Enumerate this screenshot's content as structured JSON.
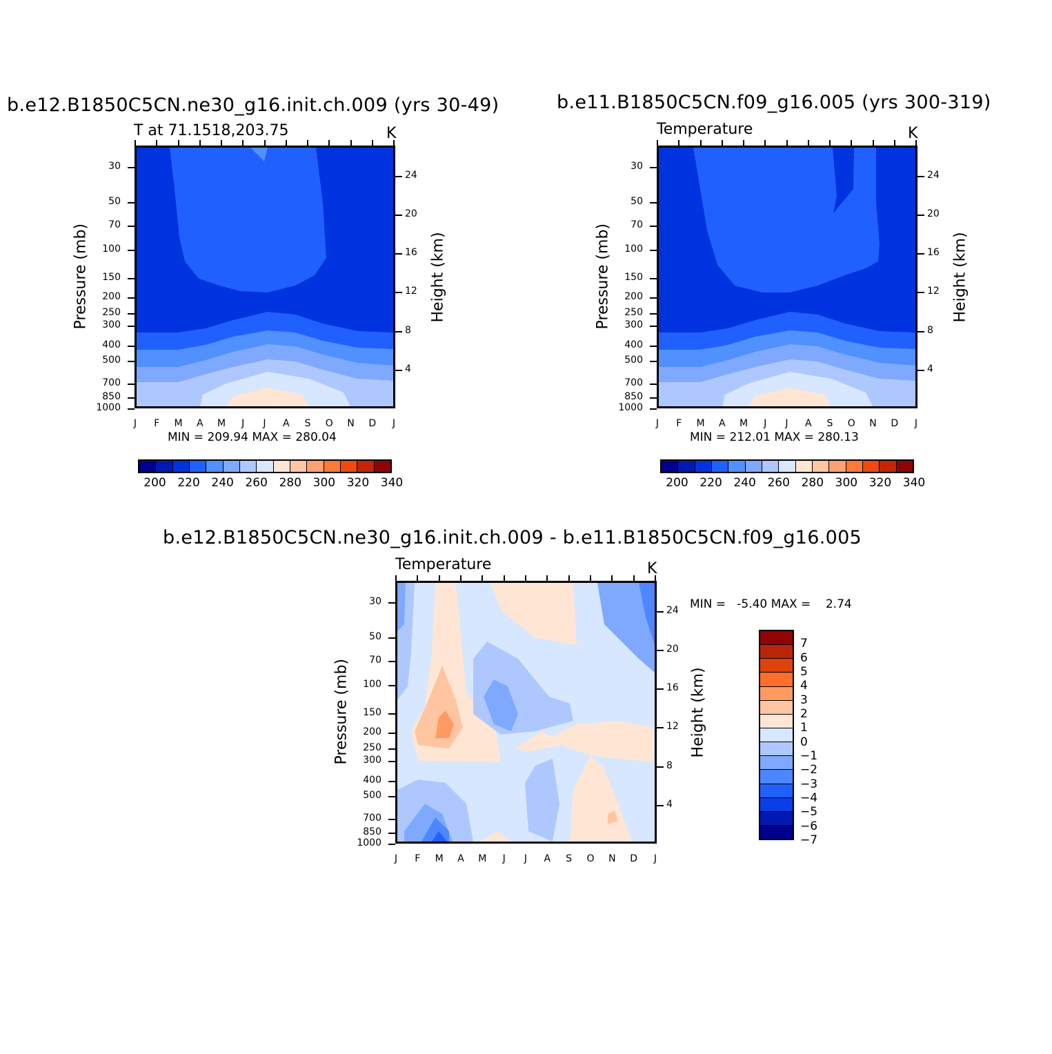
{
  "panels": [
    {
      "title": "b.e12.B1850C5CN.ne30_g16.init.ch.009 (yrs 30-49)",
      "left_string": "T at 71.1518,203.75",
      "right_string": "K",
      "y_label": "Pressure (mb)",
      "y2_label": "Height (km)",
      "minmax": "MIN = 209.94 MAX = 280.04"
    },
    {
      "title": "b.e11.B1850C5CN.f09_g16.005 (yrs 300-319)",
      "left_string": "Temperature",
      "right_string": "K",
      "y_label": "Pressure (mb)",
      "y2_label": "Height (km)",
      "minmax": "MIN = 212.01 MAX = 280.13"
    },
    {
      "title": "b.e12.B1850C5CN.ne30_g16.init.ch.009 - b.e11.B1850C5CN.f09_g16.005",
      "left_string": "Temperature",
      "right_string": "K",
      "y_label": "Pressure (mb)",
      "y2_label": "Height (km)",
      "minmax": "MIN =   -5.40 MAX =    2.74"
    }
  ],
  "chart_data": [
    {
      "type": "heatmap",
      "title": "b.e12.B1850C5CN.ne30_g16.init.ch.009 (yrs 30-49)",
      "variable": "T at 71.1518,203.75",
      "units": "K",
      "xlabel": "",
      "ylabel": "Pressure (mb)",
      "y2label": "Height (km)",
      "x_ticks": [
        "J",
        "F",
        "M",
        "A",
        "M",
        "J",
        "J",
        "A",
        "S",
        "O",
        "N",
        "D",
        "J"
      ],
      "y_ticks": [
        30,
        50,
        70,
        100,
        150,
        200,
        250,
        300,
        400,
        500,
        700,
        850,
        1000
      ],
      "y_scale": "log",
      "y_reversed": true,
      "y2_ticks": [
        24,
        20,
        16,
        12,
        8,
        4
      ],
      "min": 209.94,
      "max": 280.04,
      "colorbar_labels": [
        "200",
        "220",
        "240",
        "260",
        "280",
        "300",
        "320",
        "340"
      ],
      "colorbar_orientation": "horizontal"
    },
    {
      "type": "heatmap",
      "title": "b.e11.B1850C5CN.f09_g16.005 (yrs 300-319)",
      "variable": "Temperature",
      "units": "K",
      "xlabel": "",
      "ylabel": "Pressure (mb)",
      "y2label": "Height (km)",
      "x_ticks": [
        "J",
        "F",
        "M",
        "A",
        "M",
        "J",
        "J",
        "A",
        "S",
        "O",
        "N",
        "D",
        "J"
      ],
      "y_ticks": [
        30,
        50,
        70,
        100,
        150,
        200,
        250,
        300,
        400,
        500,
        700,
        850,
        1000
      ],
      "y_scale": "log",
      "y_reversed": true,
      "y2_ticks": [
        24,
        20,
        16,
        12,
        8,
        4
      ],
      "min": 212.01,
      "max": 280.13,
      "colorbar_labels": [
        "200",
        "220",
        "240",
        "260",
        "280",
        "300",
        "320",
        "340"
      ],
      "colorbar_orientation": "horizontal"
    },
    {
      "type": "heatmap",
      "title": "b.e12.B1850C5CN.ne30_g16.init.ch.009 - b.e11.B1850C5CN.f09_g16.005",
      "variable": "Temperature",
      "units": "K",
      "xlabel": "",
      "ylabel": "Pressure (mb)",
      "y2label": "Height (km)",
      "x_ticks": [
        "J",
        "F",
        "M",
        "A",
        "M",
        "J",
        "J",
        "A",
        "S",
        "O",
        "N",
        "D",
        "J"
      ],
      "y_ticks": [
        30,
        50,
        70,
        100,
        150,
        200,
        250,
        300,
        400,
        500,
        700,
        850,
        1000
      ],
      "y_scale": "log",
      "y_reversed": true,
      "y2_ticks": [
        24,
        20,
        16,
        12,
        8,
        4
      ],
      "min": -5.4,
      "max": 2.74,
      "colorbar_labels": [
        "7",
        "6",
        "5",
        "4",
        "3",
        "2",
        "1",
        "0",
        "-1",
        "-2",
        "-3",
        "-4",
        "-5",
        "-6",
        "-7"
      ],
      "colorbar_orientation": "vertical"
    }
  ],
  "colors": {
    "abs_scale": [
      "#00008c",
      "#0019b2",
      "#0033e0",
      "#2060ff",
      "#5090ff",
      "#7ea9ff",
      "#aec8ff",
      "#d6e7ff",
      "#ffe6d4",
      "#ffc6a6",
      "#ffa272",
      "#ff7a3a",
      "#ee4b0d",
      "#c22508",
      "#8e0505"
    ],
    "diff_scale": [
      "#8e0505",
      "#b82508",
      "#e0420c",
      "#ff6e2a",
      "#ff9a62",
      "#ffc5a0",
      "#ffe6d4",
      "#d6e7ff",
      "#aec8ff",
      "#7ea9ff",
      "#4d86ff",
      "#2060ff",
      "#0a3ee6",
      "#0019b2",
      "#00008c"
    ]
  }
}
